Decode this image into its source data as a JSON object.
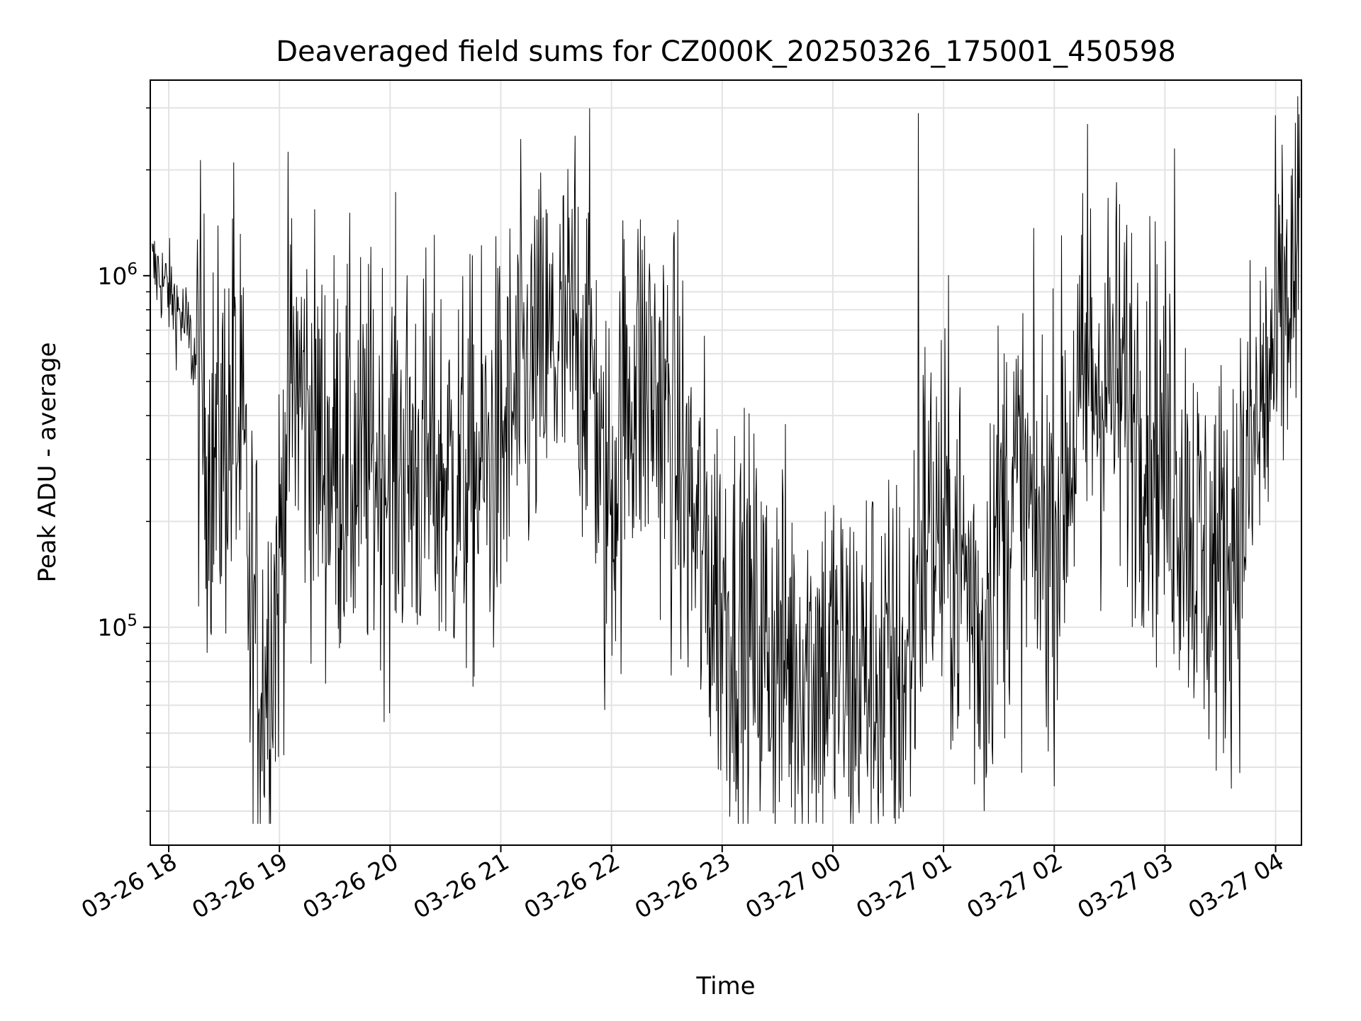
{
  "chart_data": {
    "type": "line",
    "title": "Deaveraged field sums for CZ000K_20250326_175001_450598",
    "xlabel": "Time",
    "ylabel": "Peak ADU - average",
    "yscale": "log",
    "ylim": [
      24000,
      3600000
    ],
    "xlim": [
      "2025-03-26 17:50",
      "2025-03-27 04:14"
    ],
    "grid": true,
    "line_color": "#000000",
    "x_ticks": [
      "03-26 18",
      "03-26 19",
      "03-26 20",
      "03-26 21",
      "03-26 22",
      "03-26 23",
      "03-27 00",
      "03-27 01",
      "03-27 02",
      "03-27 03",
      "03-27 04"
    ],
    "y_ticks": [
      {
        "base": "10",
        "exp": "5",
        "value": 100000
      },
      {
        "base": "10",
        "exp": "6",
        "value": 1000000
      }
    ],
    "series": [
      {
        "values": [
          [
            "2025-03-26 17:51",
            1050000
          ],
          [
            "2025-03-26 17:55",
            1000000
          ],
          [
            "2025-03-26 18:00",
            900000
          ],
          [
            "2025-03-26 18:05",
            800000
          ],
          [
            "2025-03-26 18:10",
            700000
          ],
          [
            "2025-03-26 18:15",
            550000
          ],
          [
            "2025-03-26 18:20",
            350000
          ],
          [
            "2025-03-26 18:25",
            300000
          ],
          [
            "2025-03-26 18:30",
            350000
          ],
          [
            "2025-03-26 18:35",
            400000
          ],
          [
            "2025-03-26 18:40",
            300000
          ],
          [
            "2025-03-26 18:45",
            120000
          ],
          [
            "2025-03-26 18:50",
            70000
          ],
          [
            "2025-03-26 18:55",
            90000
          ],
          [
            "2025-03-26 19:00",
            150000
          ],
          [
            "2025-03-26 19:05",
            450000
          ],
          [
            "2025-03-26 19:10",
            500000
          ],
          [
            "2025-03-26 19:15",
            400000
          ],
          [
            "2025-03-26 19:20",
            350000
          ],
          [
            "2025-03-26 19:25",
            300000
          ],
          [
            "2025-03-26 19:30",
            300000
          ],
          [
            "2025-03-26 19:40",
            280000
          ],
          [
            "2025-03-26 19:50",
            290000
          ],
          [
            "2025-03-26 20:00",
            300000
          ],
          [
            "2025-03-26 20:10",
            300000
          ],
          [
            "2025-03-26 20:20",
            280000
          ],
          [
            "2025-03-26 20:30",
            270000
          ],
          [
            "2025-03-26 20:40",
            260000
          ],
          [
            "2025-03-26 20:50",
            280000
          ],
          [
            "2025-03-26 21:00",
            320000
          ],
          [
            "2025-03-26 21:10",
            450000
          ],
          [
            "2025-03-26 21:20",
            550000
          ],
          [
            "2025-03-26 21:30",
            600000
          ],
          [
            "2025-03-26 21:40",
            650000
          ],
          [
            "2025-03-26 21:50",
            600000
          ],
          [
            "2025-03-26 21:55",
            200000
          ],
          [
            "2025-03-26 22:00",
            250000
          ],
          [
            "2025-03-26 22:10",
            500000
          ],
          [
            "2025-03-26 22:20",
            500000
          ],
          [
            "2025-03-26 22:30",
            400000
          ],
          [
            "2025-03-26 22:40",
            250000
          ],
          [
            "2025-03-26 22:50",
            150000
          ],
          [
            "2025-03-26 23:00",
            120000
          ],
          [
            "2025-03-26 23:10",
            100000
          ],
          [
            "2025-03-26 23:20",
            90000
          ],
          [
            "2025-03-26 23:30",
            85000
          ],
          [
            "2025-03-26 23:40",
            80000
          ],
          [
            "2025-03-26 23:50",
            80000
          ],
          [
            "2025-03-27 00:00",
            80000
          ],
          [
            "2025-03-27 00:10",
            70000
          ],
          [
            "2025-03-27 00:20",
            75000
          ],
          [
            "2025-03-27 00:30",
            70000
          ],
          [
            "2025-03-27 00:40",
            72000
          ],
          [
            "2025-03-27 00:50",
            200000
          ],
          [
            "2025-03-27 01:00",
            180000
          ],
          [
            "2025-03-27 01:10",
            150000
          ],
          [
            "2025-03-27 01:20",
            100000
          ],
          [
            "2025-03-27 01:30",
            200000
          ],
          [
            "2025-03-27 01:40",
            250000
          ],
          [
            "2025-03-27 01:50",
            180000
          ],
          [
            "2025-03-27 02:00",
            200000
          ],
          [
            "2025-03-27 02:10",
            350000
          ],
          [
            "2025-03-27 02:20",
            500000
          ],
          [
            "2025-03-27 02:30",
            500000
          ],
          [
            "2025-03-27 02:40",
            450000
          ],
          [
            "2025-03-27 02:50",
            400000
          ],
          [
            "2025-03-27 03:00",
            300000
          ],
          [
            "2025-03-27 03:10",
            250000
          ],
          [
            "2025-03-27 03:20",
            150000
          ],
          [
            "2025-03-27 03:30",
            150000
          ],
          [
            "2025-03-27 03:40",
            200000
          ],
          [
            "2025-03-27 03:50",
            350000
          ],
          [
            "2025-03-27 04:00",
            600000
          ],
          [
            "2025-03-27 04:05",
            800000
          ],
          [
            "2025-03-27 04:13",
            1050000
          ]
        ]
      }
    ],
    "extremes": [
      {
        "x": "2025-03-26 18:35",
        "y": 2100000
      },
      {
        "x": "2025-03-26 18:44",
        "y": 47000
      },
      {
        "x": "2025-03-26 21:40",
        "y": 2500000
      },
      {
        "x": "2025-03-27 00:27",
        "y": 29000
      },
      {
        "x": "2025-03-27 00:46",
        "y": 2900000
      },
      {
        "x": "2025-03-27 01:22",
        "y": 30000
      },
      {
        "x": "2025-03-27 02:18",
        "y": 2700000
      },
      {
        "x": "2025-03-27 03:05",
        "y": 2300000
      }
    ]
  }
}
